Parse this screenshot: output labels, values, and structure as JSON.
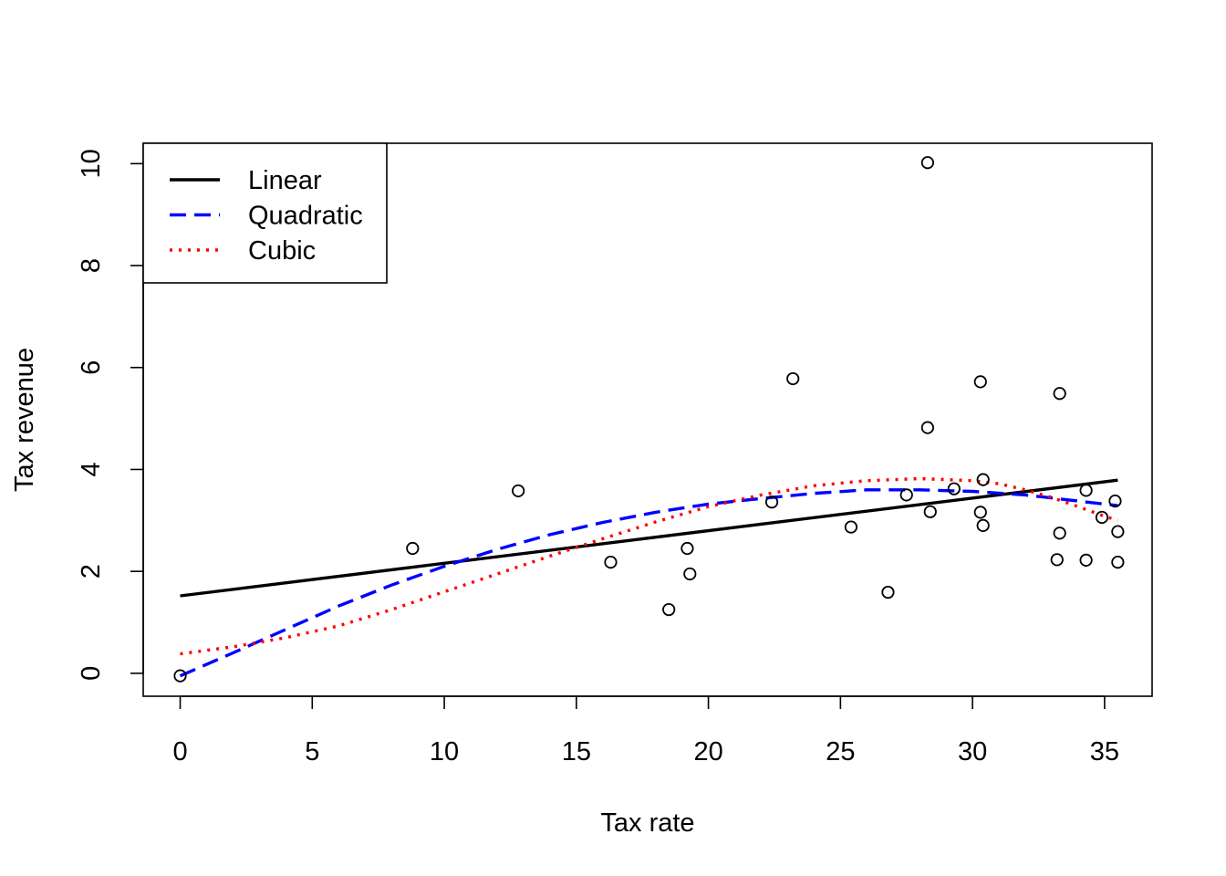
{
  "chart_data": {
    "type": "scatter",
    "title": "",
    "xlabel": "Tax rate",
    "ylabel": "Tax revenue",
    "xlim": [
      -1.4,
      36.8
    ],
    "ylim": [
      -0.45,
      10.4
    ],
    "x_ticks": [
      0,
      5,
      10,
      15,
      20,
      25,
      30,
      35
    ],
    "y_ticks": [
      0,
      2,
      4,
      6,
      8,
      10
    ],
    "x_tick_labels": [
      "0",
      "5",
      "10",
      "15",
      "20",
      "25",
      "30",
      "35"
    ],
    "y_tick_labels": [
      "0",
      "2",
      "4",
      "6",
      "8",
      "10"
    ],
    "grid": false,
    "legend_position": "top-left",
    "points": {
      "x": [
        0.0,
        8.8,
        12.8,
        16.3,
        18.5,
        19.2,
        19.3,
        22.4,
        23.2,
        25.4,
        26.8,
        27.5,
        28.3,
        28.3,
        28.4,
        29.3,
        30.3,
        30.3,
        30.4,
        30.4,
        33.2,
        33.3,
        33.3,
        34.3,
        34.3,
        34.9,
        35.4,
        35.5,
        35.5
      ],
      "y": [
        -0.05,
        2.45,
        3.58,
        2.18,
        1.25,
        2.45,
        1.95,
        3.36,
        5.78,
        2.87,
        1.59,
        3.5,
        10.02,
        4.82,
        3.17,
        3.62,
        5.72,
        3.16,
        3.8,
        2.9,
        2.23,
        5.49,
        2.75,
        3.59,
        2.22,
        3.06,
        3.38,
        2.78,
        2.18
      ]
    },
    "series": [
      {
        "name": "Linear",
        "color": "#000000",
        "dash": "solid",
        "x": [
          0,
          35.5
        ],
        "y": [
          1.52,
          3.79
        ]
      },
      {
        "name": "Quadratic",
        "color": "#0000ff",
        "dash": "dashed",
        "x": [
          0,
          2,
          4,
          6,
          8,
          10,
          12,
          14,
          16,
          18,
          20,
          22,
          24,
          26,
          28,
          30,
          32,
          34,
          35.5
        ],
        "y": [
          -0.05,
          0.4,
          0.86,
          1.32,
          1.73,
          2.1,
          2.43,
          2.72,
          2.96,
          3.16,
          3.32,
          3.43,
          3.53,
          3.6,
          3.6,
          3.57,
          3.5,
          3.38,
          3.29
        ]
      },
      {
        "name": "Cubic",
        "color": "#ff0000",
        "dash": "dotted",
        "x": [
          0,
          2,
          4,
          6,
          8,
          10,
          12,
          14,
          16,
          18,
          20,
          22,
          24,
          26,
          28,
          30,
          31,
          32,
          33,
          34,
          35,
          35.5
        ],
        "y": [
          0.38,
          0.52,
          0.7,
          0.93,
          1.25,
          1.6,
          1.95,
          2.3,
          2.64,
          2.97,
          3.27,
          3.5,
          3.68,
          3.78,
          3.82,
          3.78,
          3.72,
          3.6,
          3.45,
          3.27,
          3.08,
          3.0
        ]
      }
    ]
  }
}
